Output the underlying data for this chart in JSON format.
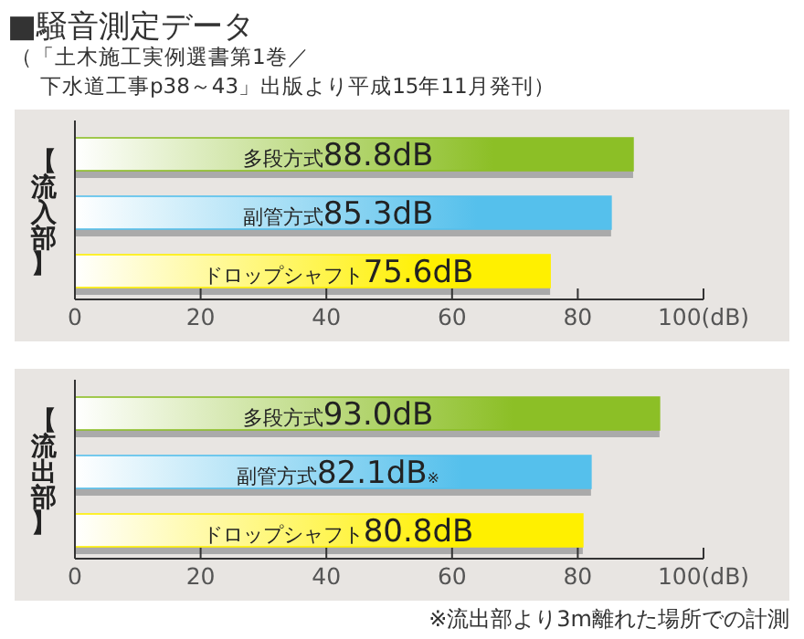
{
  "chart_data": [
    {
      "type": "bar",
      "orientation": "horizontal",
      "title": "■騒音測定データ",
      "subtitle": "（「土木施工実例選書第1巻／下水道工事p38～43」出版より平成15年11月発刊）",
      "ylabel": "【流入部】",
      "categories": [
        "多段方式",
        "副管方式",
        "ドロップシャフト"
      ],
      "values": [
        88.8,
        85.3,
        75.6
      ],
      "value_labels": [
        "88.8dB",
        "85.3dB",
        "75.6dB"
      ],
      "colors": [
        "#8cbf26",
        "#55c0ec",
        "#fff000"
      ],
      "xlim": [
        0,
        100
      ],
      "xticks": [
        0,
        20,
        40,
        60,
        80,
        {
          "value": 100,
          "label": "100(dB)"
        }
      ]
    },
    {
      "type": "bar",
      "orientation": "horizontal",
      "ylabel": "【流出部】",
      "categories": [
        "多段方式",
        "副管方式",
        "ドロップシャフト"
      ],
      "values": [
        93.0,
        82.1,
        80.8
      ],
      "value_labels": [
        "93.0dB",
        "82.1dB※",
        "80.8dB"
      ],
      "colors": [
        "#8cbf26",
        "#55c0ec",
        "#fff000"
      ],
      "xlim": [
        0,
        100
      ],
      "xticks": [
        0,
        20,
        40,
        60,
        80,
        {
          "value": 100,
          "label": "100(dB)"
        }
      ],
      "annotations": [
        "※流出部より3m離れた場所での計測"
      ]
    }
  ]
}
